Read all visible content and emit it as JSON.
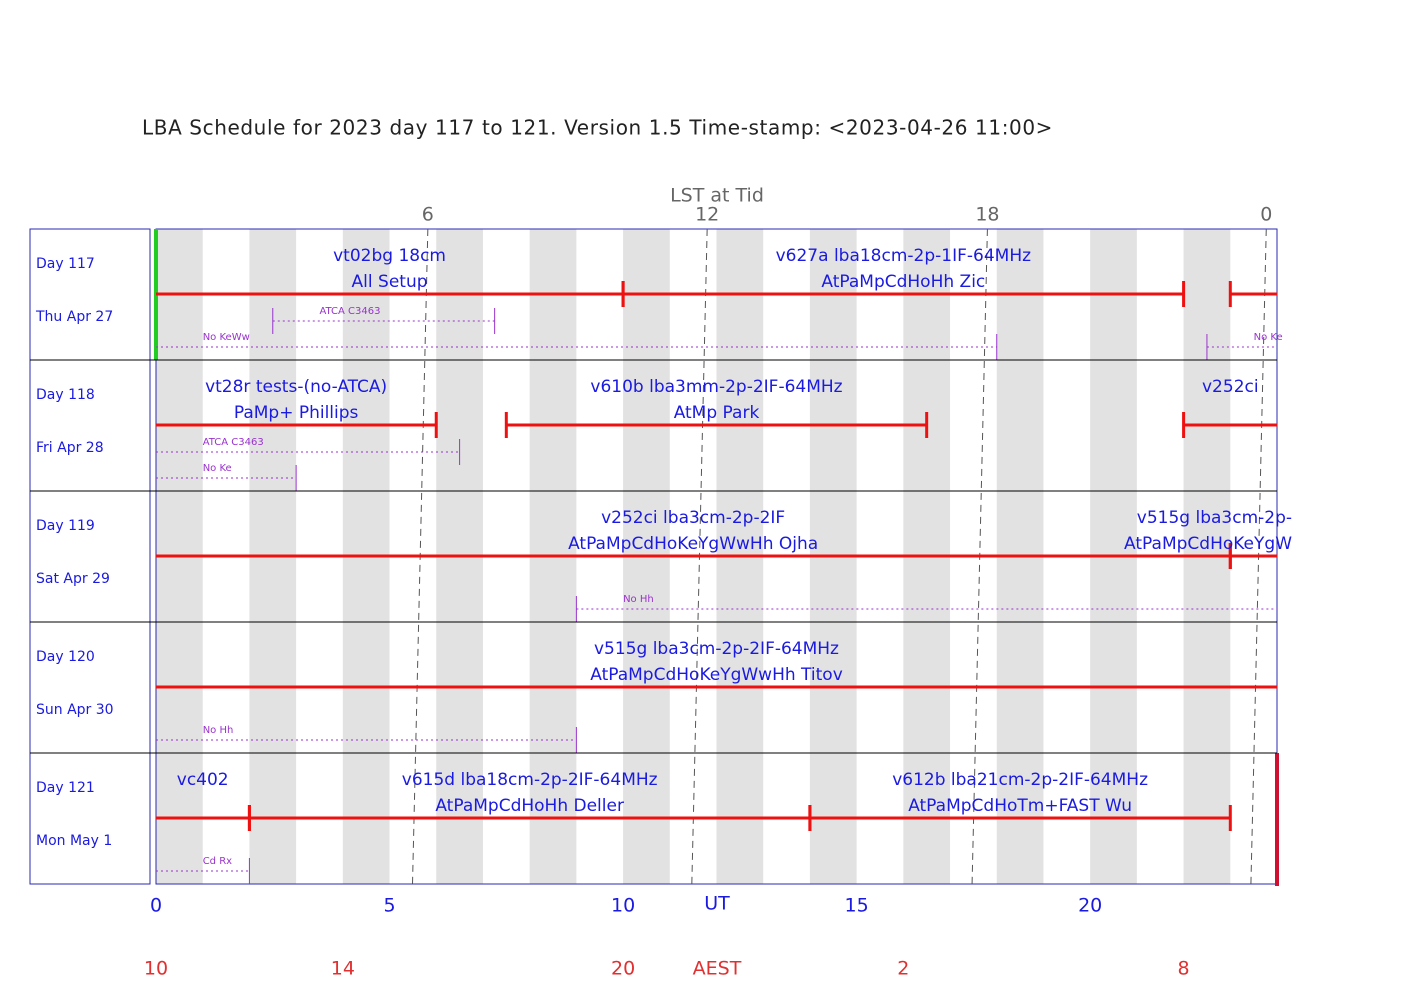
{
  "title": "LBA Schedule for 2023 day 117 to 121. Version 1.5 Time-stamp: <2023-04-26 11:00>",
  "axes": {
    "xlim": [
      0,
      24
    ],
    "lst": {
      "label": "LST at Tid",
      "ticks": [
        {
          "value": 5.82,
          "label": "6"
        },
        {
          "value": 11.8,
          "label": "12"
        },
        {
          "value": 17.8,
          "label": "18"
        },
        {
          "value": 23.77,
          "label": "0"
        }
      ]
    },
    "ut": {
      "label": "UT",
      "ticks": [
        0,
        5,
        10,
        15,
        20
      ]
    },
    "aest": {
      "label": "AEST",
      "ticks": [
        {
          "value": 0,
          "label": "10"
        },
        {
          "value": 4,
          "label": "14"
        },
        {
          "value": 10,
          "label": "20"
        },
        {
          "value": 16,
          "label": "2"
        },
        {
          "value": 22,
          "label": "8"
        }
      ]
    }
  },
  "days": [
    {
      "day": "Day 117",
      "date": "Thu Apr 27",
      "experiments": [
        {
          "line1": "vt02bg 18cm",
          "line2": "All Setup",
          "start": 0,
          "end": 10
        },
        {
          "line1": "v627a lba18cm-2p-1IF-64MHz",
          "line2": "AtPaMpCdHoHh Zic",
          "start": 10,
          "end": 22
        },
        {
          "start": 23,
          "end": 24
        }
      ],
      "constraints": [
        [
          {
            "label": "No KeWw",
            "start": 0,
            "end": 18
          },
          {
            "label": "No Ke",
            "start": 22.5,
            "end": 24
          }
        ],
        [
          {
            "label": "ATCA C3463",
            "start": 2.5,
            "end": 7.25
          }
        ]
      ]
    },
    {
      "day": "Day 118",
      "date": "Fri Apr 28",
      "experiments": [
        {
          "line1": "vt28r tests-(no-ATCA)",
          "line2": "PaMp+ Phillips",
          "start": 0,
          "end": 6
        },
        {
          "line1": "v610b lba3mm-2p-2IF-64MHz",
          "line2": "AtMp Park",
          "start": 7.5,
          "end": 16.5
        },
        {
          "line1": "v252ci",
          "start": 22,
          "end": 24
        }
      ],
      "constraints": [
        [
          {
            "label": "No Ke",
            "start": 0,
            "end": 3
          }
        ],
        [
          {
            "label": "ATCA C3463",
            "start": 0,
            "end": 6.5
          }
        ]
      ]
    },
    {
      "day": "Day 119",
      "date": "Sat Apr 29",
      "experiments": [
        {
          "line1": "v252ci lba3cm-2p-2IF",
          "line2": "AtPaMpCdHoKeYgWwHh Ojha",
          "start": 0,
          "end": 23
        },
        {
          "line1": "v515g lba3cm-2p-",
          "line2": "AtPaMpCdHoKeYgW",
          "start": 23,
          "end": 24
        }
      ],
      "constraints": [
        [
          {
            "label": "No Hh",
            "start": 9,
            "end": 24
          }
        ]
      ]
    },
    {
      "day": "Day 120",
      "date": "Sun Apr 30",
      "experiments": [
        {
          "line1": "v515g lba3cm-2p-2IF-64MHz",
          "line2": "AtPaMpCdHoKeYgWwHh Titov",
          "start": 0,
          "end": 24
        }
      ],
      "constraints": [
        [
          {
            "label": "No Hh",
            "start": 0,
            "end": 9
          }
        ]
      ]
    },
    {
      "day": "Day 121",
      "date": "Mon May 1",
      "experiments": [
        {
          "line1": "vc402",
          "start": 0,
          "end": 2
        },
        {
          "line1": "v615d lba18cm-2p-2IF-64MHz",
          "line2": "AtPaMpCdHoHh Deller",
          "start": 2,
          "end": 14
        },
        {
          "line1": "v612b lba21cm-2p-2IF-64MHz",
          "line2": "AtPaMpCdHoTm+FAST Wu",
          "start": 14,
          "end": 23
        }
      ],
      "constraints": [
        [
          {
            "label": "Cd Rx",
            "start": 0,
            "end": 2
          }
        ]
      ]
    }
  ]
}
